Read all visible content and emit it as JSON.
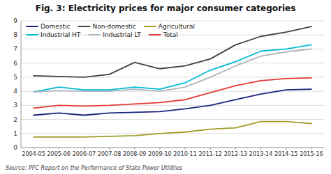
{
  "chart_data": {
    "type": "line",
    "title": "Fig. 3: Electricity prices for major consumer categories",
    "annotations": [
      "Source: PFC Report on the Performance of State Power Utilities"
    ],
    "categories": [
      "2004-05",
      "2005-06",
      "2006-07",
      "2007-08",
      "2008-09",
      "2009-10",
      "2010-11",
      "2011-12",
      "2012-13",
      "2013-14",
      "2014-15",
      "2015-16"
    ],
    "series": [
      {
        "name": "Domestic",
        "color": "#1a237e",
        "values": [
          2.3,
          2.45,
          2.3,
          2.45,
          2.5,
          2.55,
          2.75,
          3.0,
          3.4,
          3.8,
          4.1,
          4.15
        ]
      },
      {
        "name": "Non-domestic",
        "color": "#424242",
        "values": [
          5.1,
          5.05,
          5.0,
          5.2,
          6.05,
          5.6,
          5.8,
          6.3,
          7.3,
          7.9,
          8.2,
          8.6
        ]
      },
      {
        "name": "Agricultural",
        "color": "#9e9d24",
        "values": [
          0.75,
          0.75,
          0.75,
          0.8,
          0.85,
          1.0,
          1.1,
          1.3,
          1.4,
          1.85,
          1.85,
          1.7
        ]
      },
      {
        "name": "Industrial HT",
        "color": "#00bcd4",
        "values": [
          3.95,
          4.3,
          4.1,
          4.1,
          4.3,
          4.15,
          4.6,
          5.5,
          6.1,
          6.85,
          7.0,
          7.3
        ]
      },
      {
        "name": "Industrial LT",
        "color": "#adb5bd",
        "values": [
          3.95,
          4.05,
          4.0,
          4.0,
          4.15,
          4.0,
          4.3,
          5.0,
          5.8,
          6.5,
          6.8,
          7.0
        ]
      },
      {
        "name": "Total",
        "color": "#e53935",
        "values": [
          2.8,
          3.0,
          2.95,
          3.0,
          3.1,
          3.2,
          3.4,
          3.9,
          4.4,
          4.75,
          4.9,
          4.95
        ]
      }
    ],
    "ylim": [
      0,
      9
    ],
    "yticks": [
      0,
      1,
      2,
      3,
      4,
      5,
      6,
      7,
      8,
      9
    ],
    "grid": true,
    "legend": "upper left"
  }
}
